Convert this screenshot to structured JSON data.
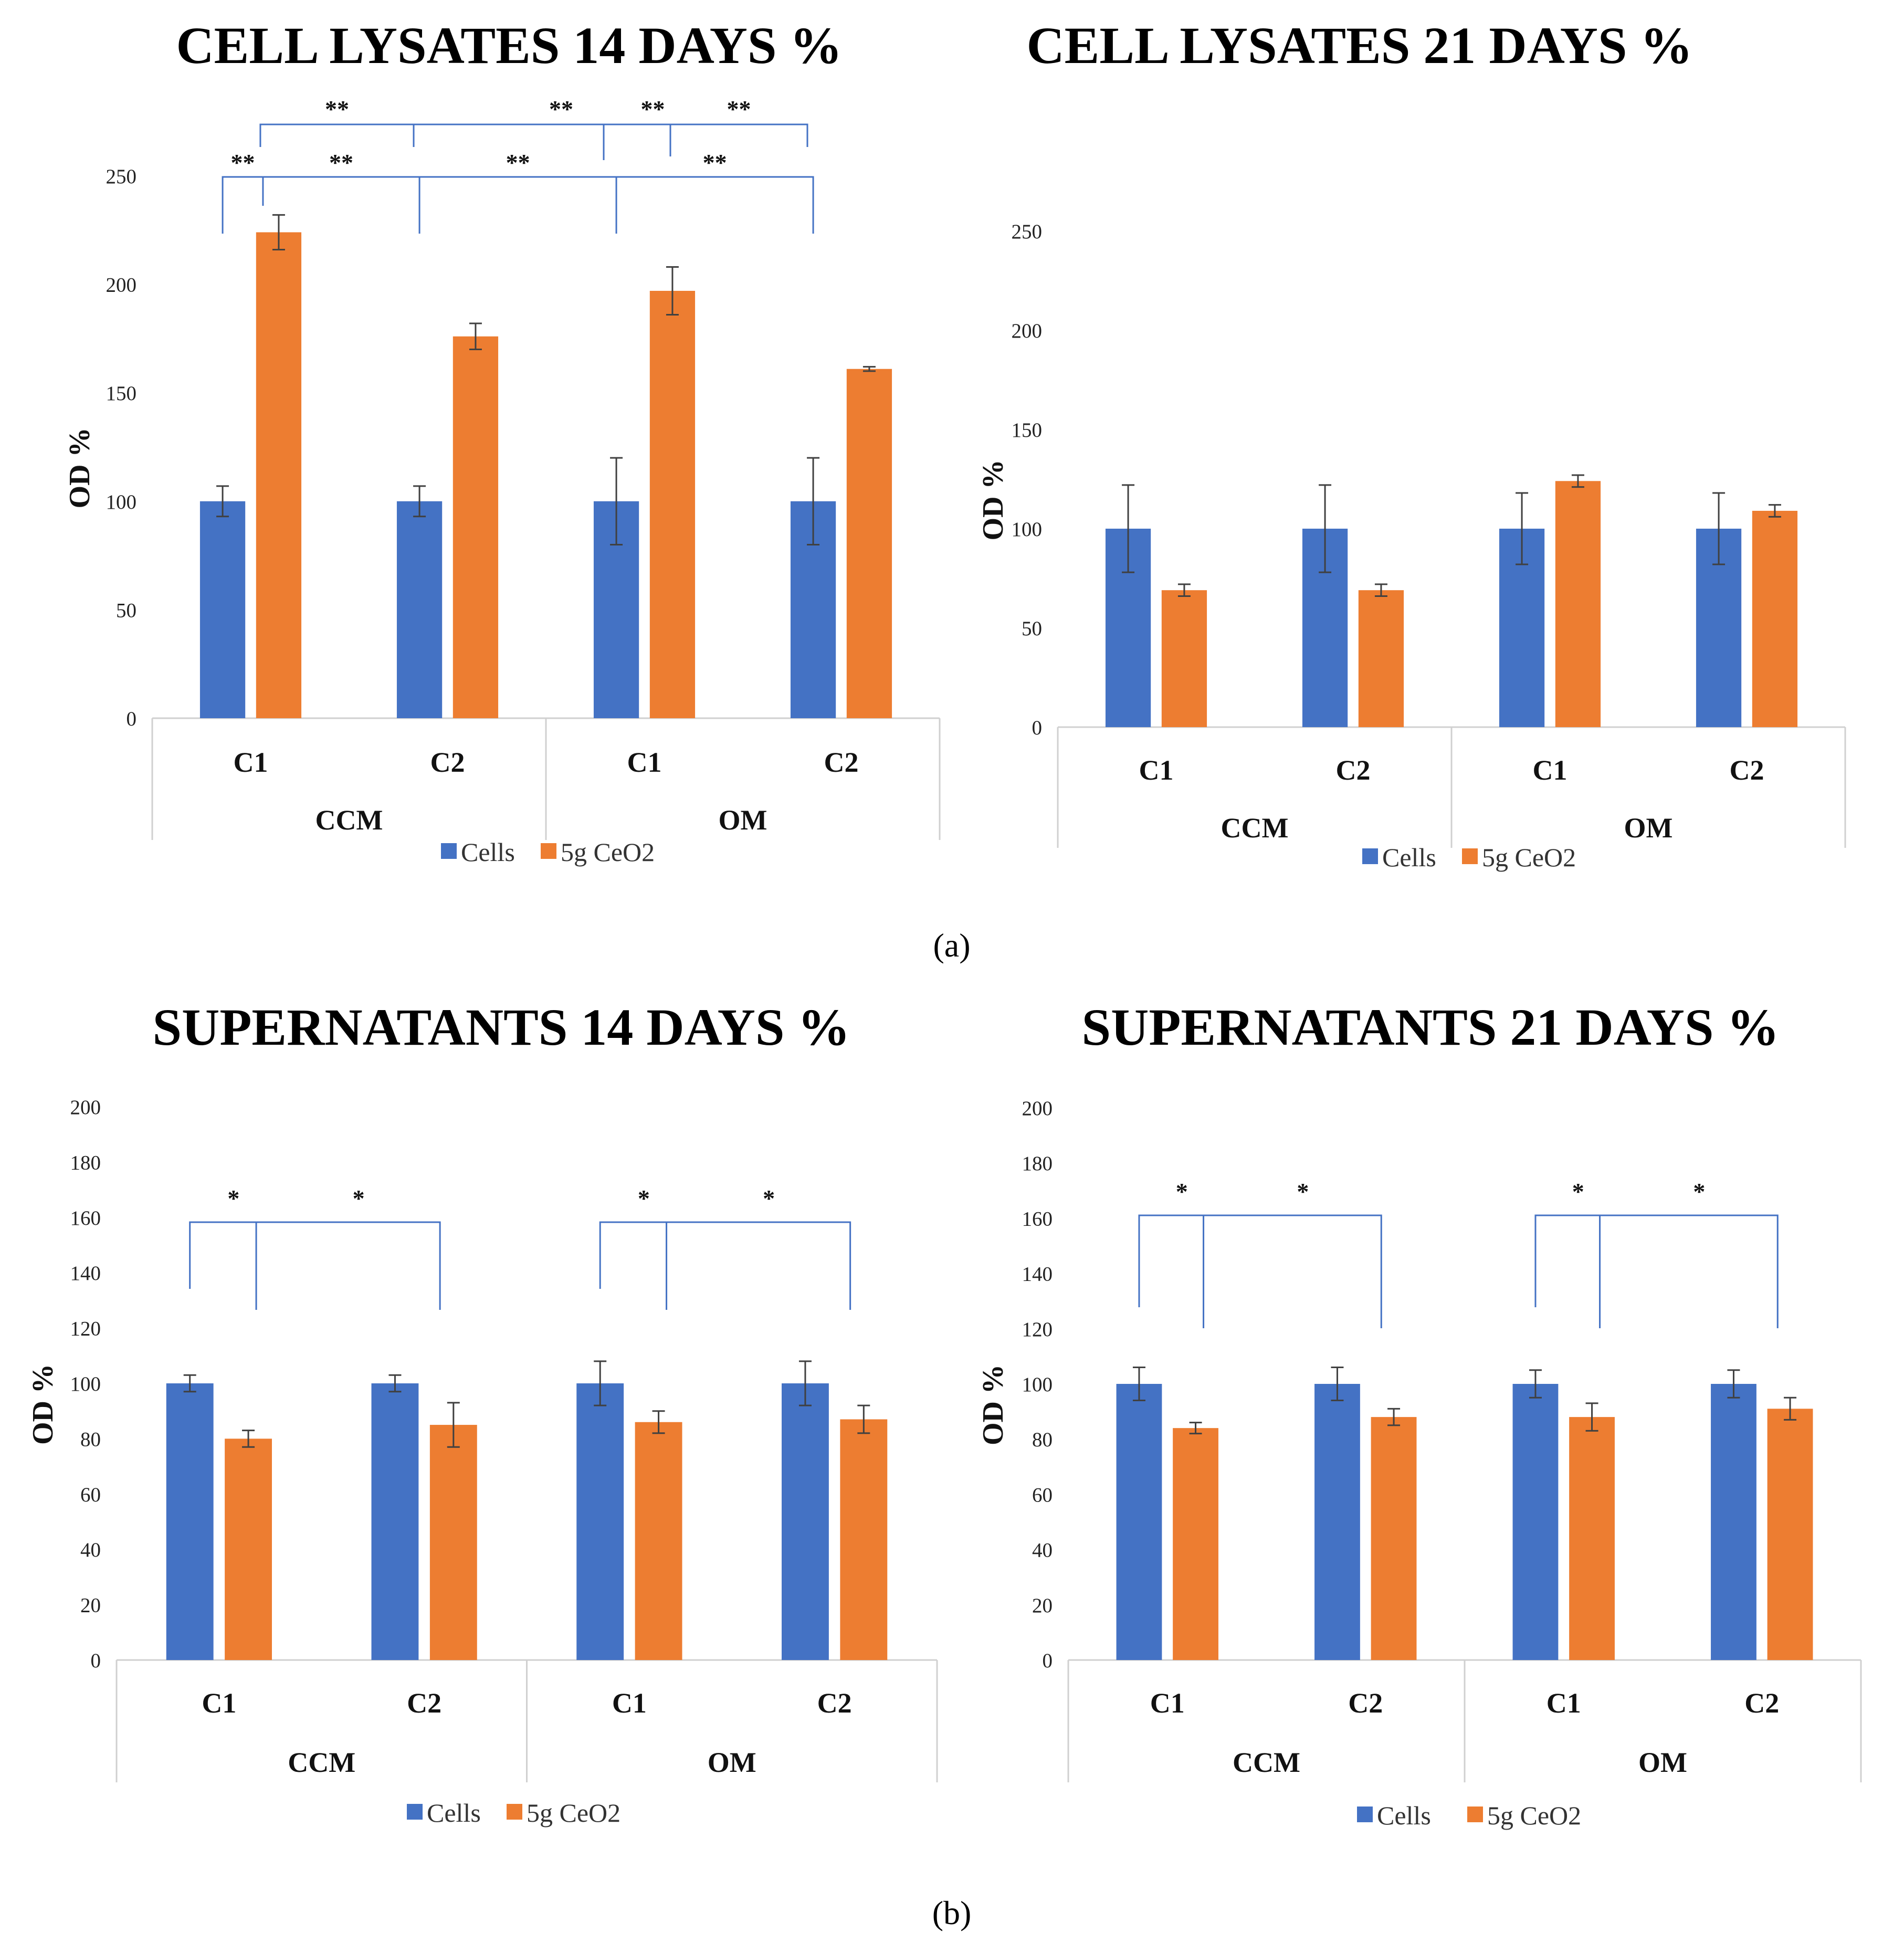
{
  "chart_data": [
    {
      "type": "bar",
      "title": "CELL LYSATES 14 DAYS %",
      "ylabel": "OD %",
      "xlabel": "",
      "ylim": [
        0,
        250
      ],
      "yticks": [
        "0",
        "50",
        "100",
        "150",
        "200",
        "250"
      ],
      "categories": [
        "C1",
        "C2",
        "C1",
        "C2"
      ],
      "groups": [
        {
          "label": "CCM"
        },
        {
          "label": "OM"
        }
      ],
      "series": [
        {
          "name": "Cells",
          "color": "#4472C4",
          "values": [
            100,
            100,
            100,
            100
          ],
          "errors": [
            7,
            7,
            20,
            20
          ]
        },
        {
          "name": "5g CeO2",
          "color": "#ED7D31",
          "values": [
            224,
            176,
            197,
            161
          ],
          "errors": [
            8,
            6,
            11,
            1
          ]
        }
      ],
      "significance": {
        "mark": "**",
        "level1_marks": [
          "**",
          "**",
          "**",
          "**"
        ],
        "level2_marks": [
          "**",
          "**",
          "**",
          "**"
        ]
      }
    },
    {
      "type": "bar",
      "title": "CELL LYSATES 21 DAYS %",
      "ylabel": "OD %",
      "xlabel": "",
      "ylim": [
        0,
        250
      ],
      "yticks": [
        "0",
        "50",
        "100",
        "150",
        "200",
        "250"
      ],
      "categories": [
        "C1",
        "C2",
        "C1",
        "C2"
      ],
      "groups": [
        {
          "label": "CCM"
        },
        {
          "label": "OM"
        }
      ],
      "series": [
        {
          "name": "Cells",
          "color": "#4472C4",
          "values": [
            100,
            100,
            100,
            100
          ],
          "errors": [
            22,
            22,
            18,
            18
          ]
        },
        {
          "name": "5g CeO2",
          "color": "#ED7D31",
          "values": [
            69,
            69,
            124,
            109
          ],
          "errors": [
            3,
            3,
            3,
            3
          ]
        }
      ]
    },
    {
      "type": "bar",
      "title": "SUPERNATANTS 14 DAYS %",
      "ylabel": "OD %",
      "xlabel": "",
      "ylim": [
        0,
        200
      ],
      "yticks": [
        "0",
        "20",
        "40",
        "60",
        "80",
        "100",
        "120",
        "140",
        "160",
        "180",
        "200"
      ],
      "categories": [
        "C1",
        "C2",
        "C1",
        "C2"
      ],
      "groups": [
        {
          "label": "CCM"
        },
        {
          "label": "OM"
        }
      ],
      "series": [
        {
          "name": "Cells",
          "color": "#4472C4",
          "values": [
            100,
            100,
            100,
            100
          ],
          "errors": [
            3,
            3,
            8,
            8
          ]
        },
        {
          "name": "5g CeO2",
          "color": "#ED7D31",
          "values": [
            80,
            85,
            86,
            87
          ],
          "errors": [
            3,
            8,
            4,
            5
          ]
        }
      ],
      "significance": {
        "mark": "*",
        "marks": [
          "*",
          "*",
          "*",
          "*"
        ]
      }
    },
    {
      "type": "bar",
      "title": "SUPERNATANTS 21 DAYS %",
      "ylabel": "OD %",
      "xlabel": "",
      "ylim": [
        0,
        200
      ],
      "yticks": [
        "0",
        "20",
        "40",
        "60",
        "80",
        "100",
        "120",
        "140",
        "160",
        "180",
        "200"
      ],
      "categories": [
        "C1",
        "C2",
        "C1",
        "C2"
      ],
      "groups": [
        {
          "label": "CCM"
        },
        {
          "label": "OM"
        }
      ],
      "series": [
        {
          "name": "Cells",
          "color": "#4472C4",
          "values": [
            100,
            100,
            100,
            100
          ],
          "errors": [
            6,
            6,
            5,
            5
          ]
        },
        {
          "name": "5g CeO2",
          "color": "#ED7D31",
          "values": [
            84,
            88,
            88,
            91
          ],
          "errors": [
            2,
            3,
            5,
            4
          ]
        }
      ],
      "significance": {
        "mark": "*",
        "marks": [
          "*",
          "*",
          "*",
          "*"
        ]
      }
    }
  ],
  "panel_labels": [
    "(a)",
    "(b)"
  ]
}
